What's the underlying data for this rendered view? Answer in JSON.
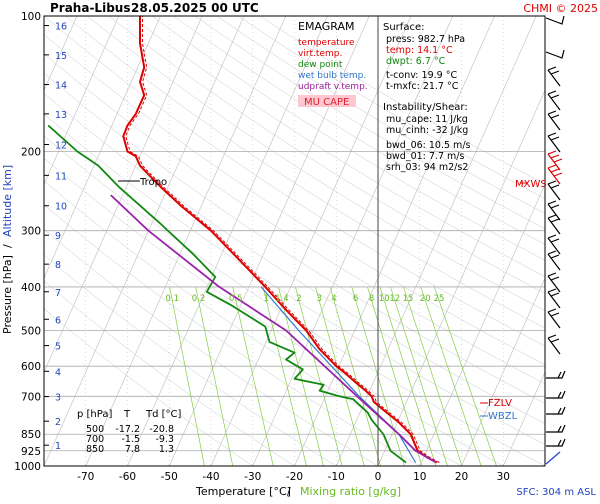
{
  "header": {
    "station": "Praha-Libus",
    "datetime": "28.05.2025 00 UTC",
    "credit": "CHMI © 2025"
  },
  "colors": {
    "temperature": "#dd0000",
    "virt_temp": "#dd0000",
    "dewpoint": "#118811",
    "wetbulb": "#3377cc",
    "parcel": "#9922aa",
    "mixing": "#88cc44",
    "mucape_bg": "#ffc8d0",
    "mucape_text": "#dd2233",
    "grid": "#aaaaaa",
    "isotherm": "#bbbbbb",
    "label_blue": "#2244bb"
  },
  "legend": {
    "title": "EMAGRAM",
    "temperature": "temperature",
    "virt_temp": "virt.temp.",
    "dewpoint": "dew point",
    "wetbulb": "wet bulb temp.",
    "udpraft": "udpraft v.temp.",
    "mucape": "MU CAPE"
  },
  "surface": {
    "title": "Surface:",
    "press": "press: 982.7 hPa",
    "temp": "temp: 14.1 °C",
    "dwpt": "dwpt: 6.7 °C",
    "tconv": "t-conv: 19.9 °C",
    "tmxfc": "t-mxfc: 21.7 °C"
  },
  "instability": {
    "title": "Instability/Shear:",
    "mu_cape": "mu_cape: 11 J/kg",
    "mu_cinh": "mu_cinh: -32 J/kg",
    "bwd_06": "bwd_06: 10.5 m/s",
    "bwd_01": "bwd_01: 7.7 m/s",
    "srh_03": "srh_03: 94 m2/s2"
  },
  "levels_table": {
    "headers": [
      "p [hPa]",
      "T",
      "Td [°C]"
    ],
    "rows": [
      [
        "500",
        "-17.2",
        "-20.8"
      ],
      [
        "700",
        "-1.5",
        "-9.3"
      ],
      [
        "850",
        "7.8",
        "1.3"
      ]
    ]
  },
  "markers": {
    "tropo": "Tropo",
    "mxws": "MXWS",
    "fzlv": "FZLV",
    "wbzl": "WBZL"
  },
  "footer": {
    "sfc": "SFC: 304 m ASL"
  },
  "chart_data": {
    "type": "line",
    "title": "EMAGRAM",
    "xlabel": "Temperature [°C]",
    "xlabel2": "Mixing ratio [g/kg]",
    "ylabel": "Pressure [hPa]",
    "ylabel2": "Altitude [km]",
    "xlim": [
      -80,
      40
    ],
    "ylim_hpa": [
      1000,
      100
    ],
    "y_scale": "log",
    "x_ticks": [
      -70,
      -60,
      -50,
      -40,
      -30,
      -20,
      -10,
      0,
      10,
      20,
      30
    ],
    "p_ticks": [
      100,
      200,
      300,
      400,
      500,
      600,
      700,
      850,
      925,
      1000
    ],
    "alt_ticks": [
      {
        "km": 16,
        "p": 105
      },
      {
        "km": 15,
        "p": 122
      },
      {
        "km": 14,
        "p": 142
      },
      {
        "km": 13,
        "p": 165
      },
      {
        "km": 12,
        "p": 193
      },
      {
        "km": 11,
        "p": 226
      },
      {
        "km": 10,
        "p": 264
      },
      {
        "km": 9,
        "p": 307
      },
      {
        "km": 8,
        "p": 356
      },
      {
        "km": 7,
        "p": 410
      },
      {
        "km": 6,
        "p": 472
      },
      {
        "km": 5,
        "p": 540
      },
      {
        "km": 4,
        "p": 616
      },
      {
        "km": 3,
        "p": 701
      },
      {
        "km": 2,
        "p": 795
      },
      {
        "km": 1,
        "p": 899
      }
    ],
    "mixing_ratio_labels": [
      "0.1",
      "0.2",
      "0.5",
      "1",
      "1.4",
      "2",
      "3",
      "4",
      "6",
      "8",
      "10",
      "12",
      "15",
      "20",
      "25"
    ],
    "grid": true,
    "series": [
      {
        "name": "temperature",
        "points": [
          [
            14.1,
            982
          ],
          [
            12,
            960
          ],
          [
            9.5,
            925
          ],
          [
            7.8,
            850
          ],
          [
            5,
            800
          ],
          [
            2,
            760
          ],
          [
            -1,
            720
          ],
          [
            -1.5,
            700
          ],
          [
            -3,
            680
          ],
          [
            -5.5,
            650
          ],
          [
            -8,
            620
          ],
          [
            -10,
            600
          ],
          [
            -14,
            550
          ],
          [
            -17.2,
            500
          ],
          [
            -22,
            450
          ],
          [
            -27,
            400
          ],
          [
            -33,
            350
          ],
          [
            -40,
            300
          ],
          [
            -47,
            265
          ],
          [
            -52,
            240
          ],
          [
            -56,
            220
          ],
          [
            -57,
            215
          ],
          [
            -58,
            205
          ],
          [
            -60,
            200
          ],
          [
            -61,
            185
          ],
          [
            -60,
            175
          ],
          [
            -58,
            165
          ],
          [
            -56,
            150
          ],
          [
            -57,
            140
          ],
          [
            -56,
            130
          ],
          [
            -57,
            115
          ],
          [
            -57,
            100
          ]
        ]
      },
      {
        "name": "dew point",
        "points": [
          [
            6.7,
            982
          ],
          [
            3,
            925
          ],
          [
            1.3,
            850
          ],
          [
            -1.5,
            790
          ],
          [
            -2.5,
            760
          ],
          [
            -6,
            710
          ],
          [
            -9.3,
            700
          ],
          [
            -14,
            680
          ],
          [
            -13,
            660
          ],
          [
            -20,
            640
          ],
          [
            -18,
            610
          ],
          [
            -22,
            580
          ],
          [
            -20,
            560
          ],
          [
            -26,
            530
          ],
          [
            -27,
            490
          ],
          [
            -35,
            440
          ],
          [
            -41,
            410
          ],
          [
            -39,
            380
          ],
          [
            -44,
            340
          ],
          [
            -52,
            290
          ],
          [
            -62,
            240
          ],
          [
            -67,
            215
          ],
          [
            -72,
            200
          ],
          [
            -79,
            175
          ]
        ]
      },
      {
        "name": "wet bulb temp.",
        "points": [
          [
            9,
            982
          ],
          [
            5,
            850
          ],
          [
            -4.5,
            700
          ],
          [
            -19,
            500
          ],
          [
            -28,
            400
          ]
        ]
      },
      {
        "name": "udpraft v.temp.",
        "points": [
          [
            14,
            982
          ],
          [
            9,
            925
          ],
          [
            5,
            850
          ],
          [
            -5,
            700
          ],
          [
            -22,
            500
          ],
          [
            -38,
            400
          ],
          [
            -55,
            300
          ],
          [
            -64,
            250
          ]
        ]
      }
    ]
  }
}
